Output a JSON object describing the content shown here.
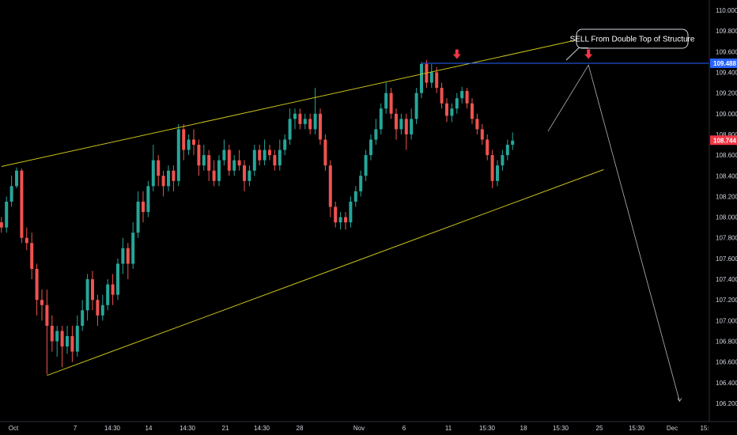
{
  "chart_data": {
    "type": "candlestick",
    "title": "",
    "ylim": [
      106.05,
      110.05
    ],
    "grid": false,
    "y_ticks": [
      110.0,
      109.8,
      109.6,
      109.4,
      109.2,
      109.0,
      108.8,
      108.6,
      108.4,
      108.2,
      108.0,
      107.8,
      107.6,
      107.4,
      107.2,
      107.0,
      106.8,
      106.6,
      106.4,
      106.2
    ],
    "x_ticks": [
      "Oct",
      "7",
      "14:30",
      "14",
      "14:30",
      "21",
      "14:30",
      "28",
      "Nov",
      "6",
      "11",
      "15:30",
      "18",
      "15:30",
      "25",
      "15:30",
      "Dec",
      "15:"
    ],
    "price_badges": [
      {
        "label": "109.488",
        "value": 109.488,
        "color": "#2962ff"
      },
      {
        "label": "108.744",
        "value": 108.744,
        "color": "#f23645"
      }
    ],
    "annotation": {
      "text": "SELL From Double Top of Structure"
    },
    "colors": {
      "up": "#26a69a",
      "down": "#ef5350",
      "channel": "#c8c11b",
      "hline": "#2962ff",
      "arrow": "#f23645",
      "path": "#b2b5be"
    },
    "channel_upper": [
      [
        1,
        108.49
      ],
      [
        120,
        109.77
      ]
    ],
    "channel_lower": [
      [
        10,
        106.47
      ],
      [
        120,
        108.46
      ]
    ],
    "horizontal_level": 109.488,
    "projection_path": [
      [
        109,
        108.83
      ],
      [
        117,
        109.47
      ],
      [
        135,
        106.22
      ]
    ],
    "arrow_markers": [
      [
        91,
        109.53
      ],
      [
        117,
        109.53
      ]
    ],
    "candles": [
      [
        1,
        107.95,
        107.9,
        108.0,
        107.85
      ],
      [
        2,
        107.9,
        108.15,
        108.2,
        107.85
      ],
      [
        3,
        108.15,
        108.3,
        108.4,
        108.1
      ],
      [
        4,
        108.3,
        108.45,
        108.48,
        108.28
      ],
      [
        5,
        108.45,
        107.8,
        108.47,
        107.75
      ],
      [
        6,
        107.8,
        107.75,
        107.9,
        107.68
      ],
      [
        7,
        107.75,
        107.5,
        107.85,
        107.4
      ],
      [
        8,
        107.5,
        107.2,
        107.55,
        107.05
      ],
      [
        9,
        107.2,
        107.15,
        107.3,
        107.0
      ],
      [
        10,
        107.15,
        106.95,
        107.3,
        106.48
      ],
      [
        11,
        106.95,
        106.8,
        107.05,
        106.7
      ],
      [
        12,
        106.8,
        106.9,
        106.95,
        106.65
      ],
      [
        13,
        106.9,
        106.75,
        106.95,
        106.55
      ],
      [
        14,
        106.75,
        106.85,
        106.95,
        106.68
      ],
      [
        15,
        106.85,
        106.7,
        106.95,
        106.6
      ],
      [
        16,
        106.7,
        106.95,
        107.05,
        106.65
      ],
      [
        17,
        106.95,
        107.1,
        107.2,
        106.9
      ],
      [
        18,
        107.1,
        107.4,
        107.45,
        107.0
      ],
      [
        19,
        107.4,
        107.2,
        107.48,
        107.1
      ],
      [
        20,
        107.2,
        107.05,
        107.25,
        106.95
      ],
      [
        21,
        107.05,
        107.15,
        107.25,
        107.0
      ],
      [
        22,
        107.15,
        107.35,
        107.4,
        107.1
      ],
      [
        23,
        107.35,
        107.25,
        107.45,
        107.15
      ],
      [
        24,
        107.25,
        107.55,
        107.6,
        107.2
      ],
      [
        25,
        107.55,
        107.7,
        107.8,
        107.45
      ],
      [
        26,
        107.7,
        107.55,
        107.75,
        107.4
      ],
      [
        27,
        107.55,
        107.85,
        107.95,
        107.5
      ],
      [
        28,
        107.85,
        108.15,
        108.25,
        107.8
      ],
      [
        29,
        108.15,
        108.05,
        108.25,
        107.95
      ],
      [
        30,
        108.05,
        108.3,
        108.35,
        108.0
      ],
      [
        31,
        108.3,
        108.55,
        108.7,
        108.25
      ],
      [
        32,
        108.55,
        108.4,
        108.6,
        108.3
      ],
      [
        33,
        108.4,
        108.3,
        108.45,
        108.2
      ],
      [
        34,
        108.3,
        108.45,
        108.5,
        108.25
      ],
      [
        35,
        108.45,
        108.35,
        108.5,
        108.25
      ],
      [
        36,
        108.35,
        108.85,
        108.9,
        108.3
      ],
      [
        37,
        108.85,
        108.65,
        108.9,
        108.55
      ],
      [
        38,
        108.65,
        108.75,
        108.8,
        108.6
      ],
      [
        39,
        108.75,
        108.7,
        108.85,
        108.6
      ],
      [
        40,
        108.7,
        108.5,
        108.75,
        108.4
      ],
      [
        41,
        108.5,
        108.6,
        108.7,
        108.45
      ],
      [
        42,
        108.6,
        108.45,
        108.65,
        108.35
      ],
      [
        43,
        108.45,
        108.35,
        108.55,
        108.3
      ],
      [
        44,
        108.35,
        108.55,
        108.6,
        108.3
      ],
      [
        45,
        108.55,
        108.65,
        108.75,
        108.5
      ],
      [
        46,
        108.65,
        108.45,
        108.7,
        108.4
      ],
      [
        47,
        108.45,
        108.55,
        108.6,
        108.4
      ],
      [
        48,
        108.55,
        108.5,
        108.65,
        108.45
      ],
      [
        49,
        108.5,
        108.35,
        108.55,
        108.25
      ],
      [
        50,
        108.35,
        108.45,
        108.5,
        108.3
      ],
      [
        51,
        108.45,
        108.65,
        108.7,
        108.4
      ],
      [
        52,
        108.65,
        108.55,
        108.7,
        108.5
      ],
      [
        53,
        108.55,
        108.65,
        108.75,
        108.5
      ],
      [
        54,
        108.65,
        108.6,
        108.7,
        108.55
      ],
      [
        55,
        108.6,
        108.5,
        108.65,
        108.45
      ],
      [
        56,
        108.5,
        108.65,
        108.75,
        108.45
      ],
      [
        57,
        108.65,
        108.75,
        108.8,
        108.6
      ],
      [
        58,
        108.75,
        108.95,
        109.05,
        108.7
      ],
      [
        59,
        108.95,
        109.0,
        109.05,
        108.85
      ],
      [
        60,
        109.0,
        108.9,
        109.05,
        108.85
      ],
      [
        61,
        108.9,
        108.95,
        109.0,
        108.85
      ],
      [
        62,
        108.95,
        108.85,
        109.0,
        108.8
      ],
      [
        63,
        108.85,
        109.0,
        109.25,
        108.8
      ],
      [
        64,
        109.0,
        108.75,
        109.05,
        108.7
      ],
      [
        65,
        108.75,
        108.5,
        108.8,
        108.45
      ],
      [
        66,
        108.5,
        108.1,
        108.55,
        108.0
      ],
      [
        67,
        108.1,
        107.95,
        108.15,
        107.9
      ],
      [
        68,
        107.95,
        108.0,
        108.05,
        107.88
      ],
      [
        69,
        108.0,
        107.95,
        108.05,
        107.88
      ],
      [
        70,
        107.95,
        108.15,
        108.2,
        107.9
      ],
      [
        71,
        108.15,
        108.25,
        108.3,
        108.1
      ],
      [
        72,
        108.25,
        108.4,
        108.45,
        108.2
      ],
      [
        73,
        108.4,
        108.6,
        108.65,
        108.35
      ],
      [
        74,
        108.6,
        108.75,
        108.8,
        108.55
      ],
      [
        75,
        108.75,
        108.85,
        108.95,
        108.7
      ],
      [
        76,
        108.85,
        109.05,
        109.1,
        108.8
      ],
      [
        77,
        109.05,
        109.2,
        109.3,
        109.0
      ],
      [
        78,
        109.2,
        109.0,
        109.25,
        108.95
      ],
      [
        79,
        109.0,
        108.85,
        109.05,
        108.75
      ],
      [
        80,
        108.85,
        108.95,
        109.0,
        108.8
      ],
      [
        81,
        108.95,
        108.8,
        109.0,
        108.65
      ],
      [
        82,
        108.8,
        108.95,
        109.05,
        108.75
      ],
      [
        83,
        108.95,
        109.2,
        109.25,
        108.9
      ],
      [
        84,
        109.2,
        109.48,
        109.5,
        109.15
      ],
      [
        85,
        109.48,
        109.3,
        109.52,
        109.25
      ],
      [
        86,
        109.3,
        109.4,
        109.48,
        109.25
      ],
      [
        87,
        109.4,
        109.25,
        109.45,
        109.2
      ],
      [
        88,
        109.25,
        109.1,
        109.3,
        109.05
      ],
      [
        89,
        109.1,
        108.98,
        109.15,
        108.92
      ],
      [
        90,
        108.98,
        109.05,
        109.1,
        108.92
      ],
      [
        91,
        109.05,
        109.15,
        109.2,
        109.0
      ],
      [
        92,
        109.15,
        109.22,
        109.26,
        109.1
      ],
      [
        93,
        109.22,
        109.1,
        109.25,
        109.05
      ],
      [
        94,
        109.1,
        108.95,
        109.15,
        108.9
      ],
      [
        95,
        108.95,
        108.85,
        109.0,
        108.8
      ],
      [
        96,
        108.85,
        108.75,
        108.9,
        108.7
      ],
      [
        97,
        108.75,
        108.6,
        108.8,
        108.55
      ],
      [
        98,
        108.6,
        108.35,
        108.65,
        108.28
      ],
      [
        99,
        108.35,
        108.5,
        108.55,
        108.3
      ],
      [
        100,
        108.5,
        108.6,
        108.65,
        108.45
      ],
      [
        101,
        108.6,
        108.7,
        108.75,
        108.55
      ],
      [
        102,
        108.7,
        108.74,
        108.82,
        108.65
      ]
    ]
  }
}
